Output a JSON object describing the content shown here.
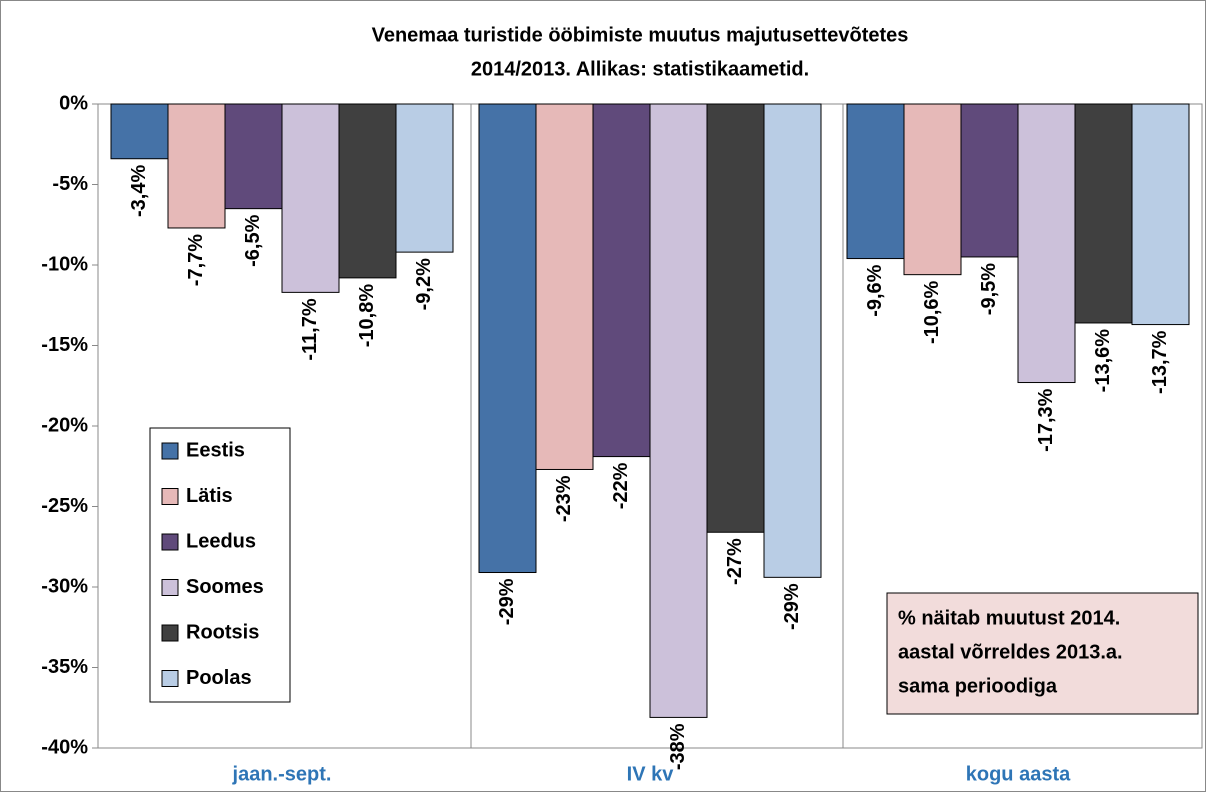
{
  "chart_data": {
    "type": "bar",
    "title": "Venemaa turistide ööbimiste muutus majutusettevõtetes",
    "subtitle": "2014/2013.  Allikas: statistikaametid.",
    "categories": [
      "jaan.-sept.",
      "IV kv",
      "kogu aasta"
    ],
    "series": [
      {
        "name": "Eestis",
        "color": "#4572a7",
        "values": [
          -3.4,
          -29.1,
          -9.6
        ],
        "value_labels": [
          "-3,4%",
          "-29%",
          "-9,6%"
        ]
      },
      {
        "name": "Lätis",
        "color": "#e6b9b8",
        "values": [
          -7.7,
          -22.7,
          -10.6
        ],
        "value_labels": [
          "-7,7%",
          "-23%",
          "-10,6%"
        ]
      },
      {
        "name": "Leedus",
        "color": "#604a7b",
        "values": [
          -6.5,
          -21.9,
          -9.5
        ],
        "value_labels": [
          "-6,5%",
          "-22%",
          "-9,5%"
        ]
      },
      {
        "name": "Soomes",
        "color": "#ccc1da",
        "values": [
          -11.7,
          -38.1,
          -17.3
        ],
        "value_labels": [
          "-11,7%",
          "-38%",
          "-17,3%"
        ]
      },
      {
        "name": "Rootsis",
        "color": "#404040",
        "values": [
          -10.8,
          -26.6,
          -13.6
        ],
        "value_labels": [
          "-10,8%",
          "-27%",
          "-13,6%"
        ]
      },
      {
        "name": "Poolas",
        "color": "#b9cde5",
        "values": [
          -9.2,
          -29.4,
          -13.7
        ],
        "value_labels": [
          "-9,2%",
          "-29%",
          "-13,7%"
        ]
      }
    ],
    "ylim": [
      -40,
      0
    ],
    "yticks": [
      {
        "value": 0,
        "label": "0%"
      },
      {
        "value": -5,
        "label": "-5%"
      },
      {
        "value": -10,
        "label": "-10%"
      },
      {
        "value": -15,
        "label": "-15%"
      },
      {
        "value": -20,
        "label": "-20%"
      },
      {
        "value": -25,
        "label": "-25%"
      },
      {
        "value": -30,
        "label": "-30%"
      },
      {
        "value": -35,
        "label": "-35%"
      },
      {
        "value": -40,
        "label": "-40%"
      }
    ],
    "grid": false,
    "legend": "left",
    "annotation": [
      "% näitab muutust 2014.",
      "aastal võrreldes 2013.a.",
      "sama perioodiga"
    ]
  }
}
